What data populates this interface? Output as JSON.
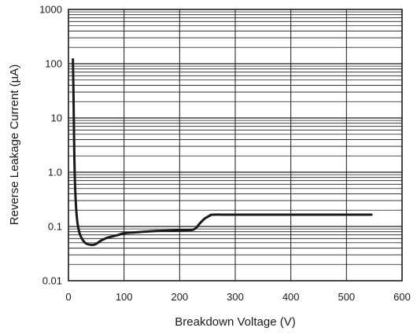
{
  "chart_data": {
    "type": "line",
    "title": "",
    "xlabel": "Breakdown Voltage (V)",
    "ylabel": "Reverse Leakage Current (µA)",
    "x_scale": "linear",
    "y_scale": "log",
    "xlim": [
      0,
      600
    ],
    "ylim": [
      0.01,
      1000
    ],
    "x_ticks": [
      0,
      100,
      200,
      300,
      400,
      500,
      600
    ],
    "x_tick_labels": [
      "0",
      "100",
      "200",
      "300",
      "400",
      "500",
      "600"
    ],
    "y_ticks": [
      0.01,
      0.1,
      1,
      10,
      100,
      1000
    ],
    "y_tick_labels": [
      "0.01",
      "0.1",
      "1.0",
      "10",
      "100",
      "1000"
    ],
    "grid": true,
    "legend": "none",
    "colors": {
      "line": "#1a1a1a",
      "grid": "#1a1a1a",
      "background": "#ffffff"
    },
    "series": [
      {
        "x": [
          8,
          9,
          10,
          11,
          13,
          16,
          20,
          25,
          30,
          35,
          40,
          45,
          50,
          55,
          60,
          70,
          80,
          90,
          100,
          120,
          150,
          180,
          200,
          220,
          225,
          230,
          235,
          240,
          245,
          250,
          255,
          260,
          300,
          400,
          500,
          545
        ],
        "y": [
          120,
          30,
          5,
          1.2,
          0.3,
          0.12,
          0.075,
          0.058,
          0.05,
          0.047,
          0.046,
          0.046,
          0.048,
          0.052,
          0.056,
          0.062,
          0.066,
          0.07,
          0.075,
          0.078,
          0.082,
          0.084,
          0.085,
          0.086,
          0.088,
          0.095,
          0.11,
          0.125,
          0.14,
          0.15,
          0.16,
          0.165,
          0.165,
          0.165,
          0.165,
          0.165
        ]
      }
    ]
  }
}
